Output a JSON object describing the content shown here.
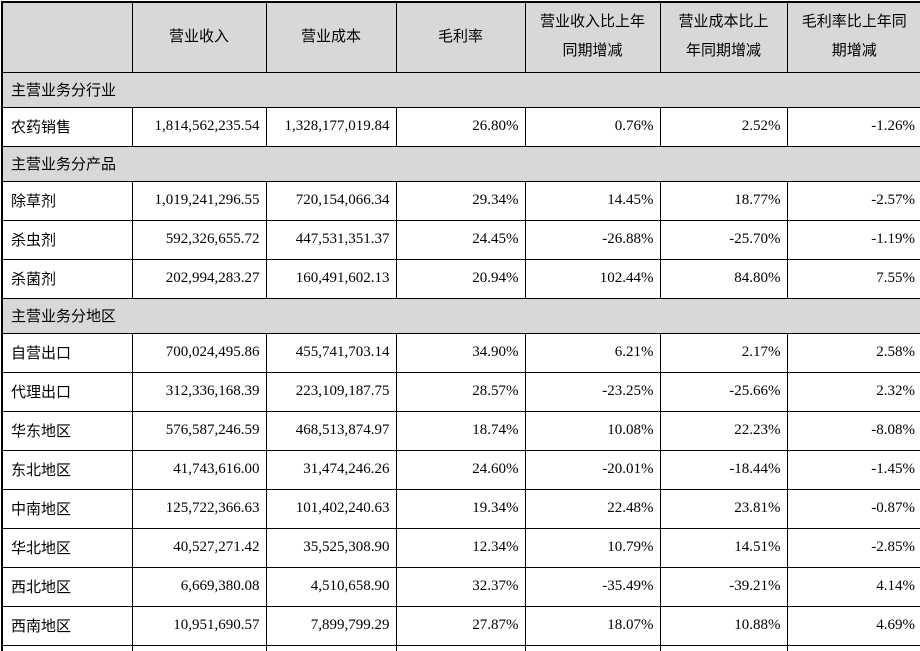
{
  "colors": {
    "header_bg": "#d8d8d8",
    "border": "#000000",
    "row_bg": "#ffffff",
    "text": "#000000"
  },
  "table": {
    "columns": [
      {
        "label": ""
      },
      {
        "label": "营业收入"
      },
      {
        "label": "营业成本"
      },
      {
        "label": "毛利率"
      },
      {
        "label": "营业收入比上年同期增减"
      },
      {
        "label": "营业成本比上年同期增减"
      },
      {
        "label": "毛利率比上年同期增减"
      }
    ],
    "sections": [
      {
        "title": "主营业务分行业",
        "rows": [
          {
            "label": "农药销售",
            "values": [
              "1,814,562,235.54",
              "1,328,177,019.84",
              "26.80%",
              "0.76%",
              "2.52%",
              "-1.26%"
            ]
          }
        ]
      },
      {
        "title": "主营业务分产品",
        "rows": [
          {
            "label": "除草剂",
            "values": [
              "1,019,241,296.55",
              "720,154,066.34",
              "29.34%",
              "14.45%",
              "18.77%",
              "-2.57%"
            ]
          },
          {
            "label": "杀虫剂",
            "values": [
              "592,326,655.72",
              "447,531,351.37",
              "24.45%",
              "-26.88%",
              "-25.70%",
              "-1.19%"
            ]
          },
          {
            "label": "杀菌剂",
            "values": [
              "202,994,283.27",
              "160,491,602.13",
              "20.94%",
              "102.44%",
              "84.80%",
              "7.55%"
            ]
          }
        ]
      },
      {
        "title": "主营业务分地区",
        "rows": [
          {
            "label": "自营出口",
            "values": [
              "700,024,495.86",
              "455,741,703.14",
              "34.90%",
              "6.21%",
              "2.17%",
              "2.58%"
            ]
          },
          {
            "label": "代理出口",
            "values": [
              "312,336,168.39",
              "223,109,187.75",
              "28.57%",
              "-23.25%",
              "-25.66%",
              "2.32%"
            ]
          },
          {
            "label": "华东地区",
            "values": [
              "576,587,246.59",
              "468,513,874.97",
              "18.74%",
              "10.08%",
              "22.23%",
              "-8.08%"
            ]
          },
          {
            "label": "东北地区",
            "values": [
              "41,743,616.00",
              "31,474,246.26",
              "24.60%",
              "-20.01%",
              "-18.44%",
              "-1.45%"
            ]
          },
          {
            "label": "中南地区",
            "values": [
              "125,722,366.63",
              "101,402,240.63",
              "19.34%",
              "22.48%",
              "23.81%",
              "-0.87%"
            ]
          },
          {
            "label": "华北地区",
            "values": [
              "40,527,271.42",
              "35,525,308.90",
              "12.34%",
              "10.79%",
              "14.51%",
              "-2.85%"
            ]
          },
          {
            "label": "西北地区",
            "values": [
              "6,669,380.08",
              "4,510,658.90",
              "32.37%",
              "-35.49%",
              "-39.21%",
              "4.14%"
            ]
          },
          {
            "label": "西南地区",
            "values": [
              "10,951,690.57",
              "7,899,799.29",
              "27.87%",
              "18.07%",
              "10.88%",
              "4.69%"
            ]
          }
        ]
      }
    ]
  }
}
